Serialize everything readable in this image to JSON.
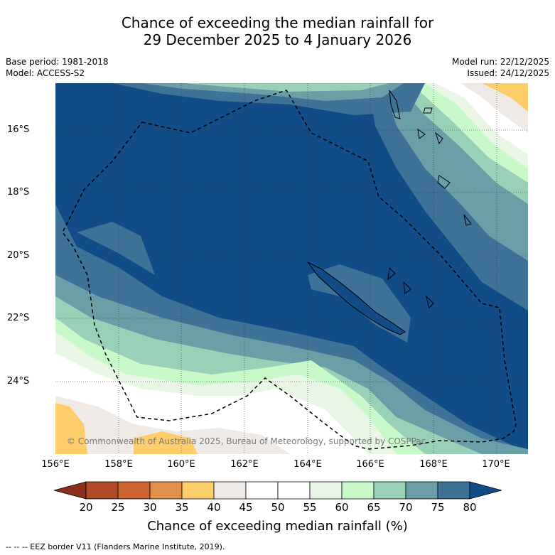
{
  "title": {
    "line1": "Chance of exceeding the median rainfall for",
    "line2": "29 December 2025 to 4 January 2026"
  },
  "meta": {
    "base_period": "Base period: 1981-2018",
    "model": "Model: ACCESS-S2",
    "model_run": "Model run: 22/12/2025",
    "issued": "Issued: 24/12/2025"
  },
  "map": {
    "lat_labels": [
      "16°S",
      "18°S",
      "20°S",
      "22°S",
      "24°S"
    ],
    "lon_labels": [
      "156°E",
      "158°E",
      "160°E",
      "162°E",
      "164°E",
      "166°E",
      "168°E",
      "170°E"
    ],
    "copyright": "© Commonwealth of Australia 2025, Bureau of Meteorology, supported by COSPPac"
  },
  "colorbar": {
    "ticks": [
      "20",
      "25",
      "30",
      "35",
      "40",
      "45",
      "50",
      "55",
      "60",
      "65",
      "70",
      "75",
      "80"
    ],
    "colors": [
      "#b04a28",
      "#cc6430",
      "#e09048",
      "#fdcd6a",
      "#efeae6",
      "#ffffff",
      "#ffffff",
      "#e9f6e6",
      "#c8f9c8",
      "#98d0b8",
      "#6a9fa7",
      "#3e7297"
    ],
    "under_color": "#8c2e1c",
    "over_color": "#124c86",
    "title": "Chance of exceeding median rainfall (%)"
  },
  "footer": "--  --  -- EEZ border V11 (Flanders Marine Institute, 2019)."
}
